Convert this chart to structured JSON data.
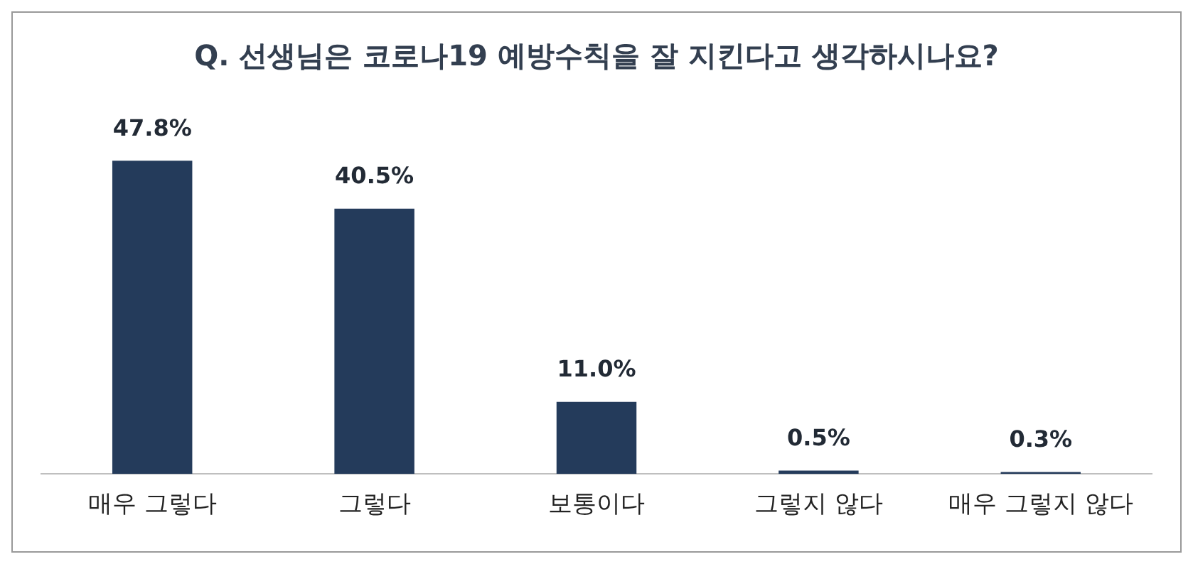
{
  "chart_data": {
    "type": "bar",
    "title": "Q. 선생님은 코로나19 예방수칙을 잘 지킨다고 생각하시나요?",
    "categories": [
      "매우 그렇다",
      "그렇다",
      "보통이다",
      "그렇지 않다",
      "매우 그렇지 않다"
    ],
    "values": [
      47.8,
      40.5,
      11.0,
      0.5,
      0.3
    ],
    "value_labels": [
      "47.8%",
      "40.5%",
      "11.0%",
      "0.5%",
      "0.3%"
    ],
    "color": "#243b5b",
    "grid": false,
    "legend": false
  }
}
